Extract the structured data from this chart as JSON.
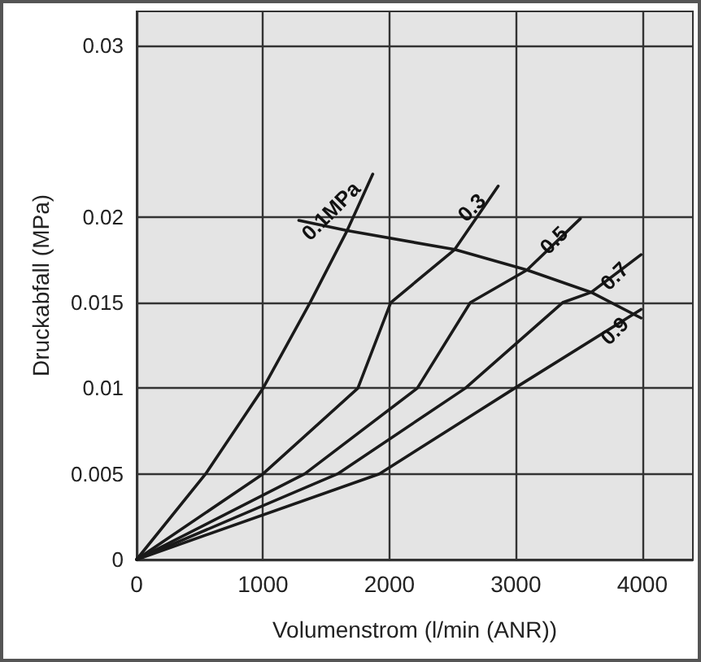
{
  "chart_data": {
    "type": "line",
    "xlabel": "Volumenstrom (l/min (ANR))",
    "ylabel": "Druckabfall (MPa)",
    "xlim": [
      0,
      4400
    ],
    "xticks": [
      0,
      1000,
      2000,
      3000,
      4000
    ],
    "ylim": [
      0,
      0.032
    ],
    "yticks": [
      0,
      0.005,
      0.01,
      0.015,
      0.02,
      0.03
    ],
    "grid": true,
    "legend": false,
    "marker": "none",
    "line_style": "solid",
    "series": [
      {
        "name": "0.1MPa",
        "color": "#1a1a1a",
        "x": [
          0,
          546,
          1000,
          1372,
          1665,
          1868
        ],
        "values": [
          0,
          0.005,
          0.01,
          0.015,
          0.0192,
          0.0225
        ]
      },
      {
        "name": "0.3",
        "color": "#1a1a1a",
        "x": [
          0,
          1000,
          1750,
          2010,
          2516,
          2860
        ],
        "values": [
          0,
          0.005,
          0.01,
          0.015,
          0.0181,
          0.0218
        ]
      },
      {
        "name": "0.5",
        "color": "#1a1a1a",
        "x": [
          0,
          1330,
          2220,
          2640,
          3088,
          3510
        ],
        "values": [
          0,
          0.005,
          0.01,
          0.015,
          0.0169,
          0.0199
        ]
      },
      {
        "name": "0.7",
        "color": "#1a1a1a",
        "x": [
          0,
          1590,
          2600,
          3370,
          3596,
          3990
        ],
        "values": [
          0,
          0.005,
          0.01,
          0.015,
          0.0156,
          0.0178
        ]
      },
      {
        "name": "0.9",
        "color": "#1a1a1a",
        "x": [
          0,
          1920,
          2990,
          3990
        ],
        "values": [
          0,
          0.005,
          0.01,
          0.0146
        ]
      },
      {
        "color": "#1a1a1a",
        "x": [
          1283,
          1665,
          2516,
          3088,
          3596,
          3990
        ],
        "values": [
          0.0198,
          0.0192,
          0.0181,
          0.0169,
          0.0156,
          0.0141
        ]
      }
    ]
  }
}
